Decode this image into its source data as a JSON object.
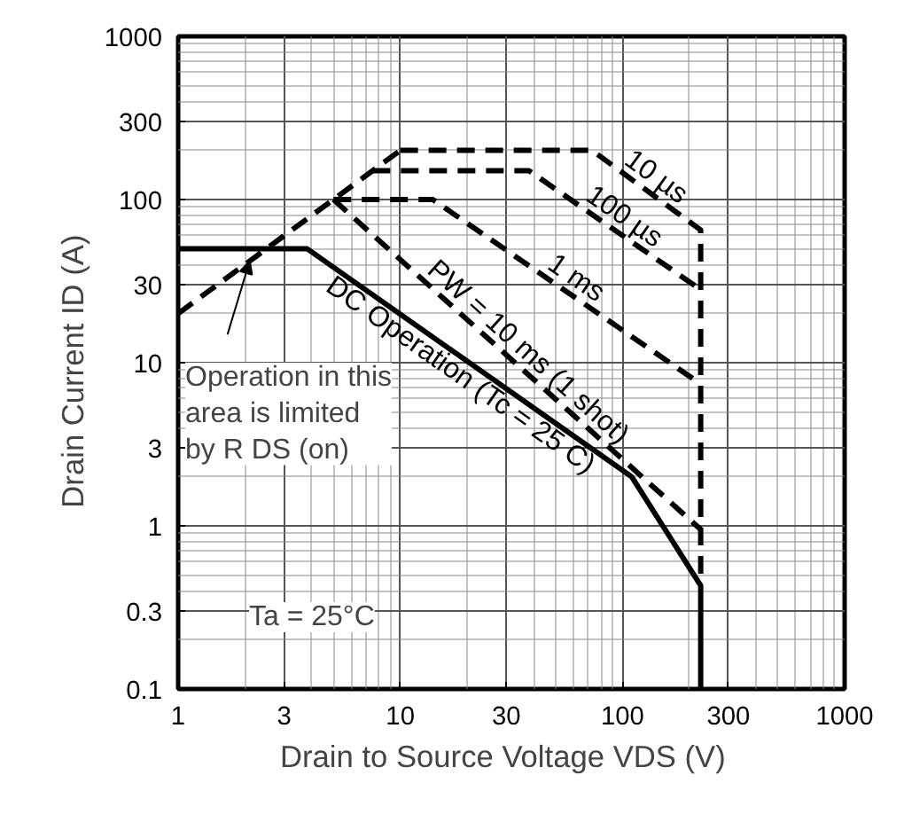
{
  "chart_data": {
    "type": "line",
    "xlabel": "Drain to Source Voltage  VDS  (V)",
    "ylabel": "Drain Current  ID  (A)",
    "log": "xy",
    "xlim": [
      1,
      1000
    ],
    "ylim": [
      0.1,
      1000
    ],
    "xticks": [
      1,
      3,
      10,
      30,
      100,
      300,
      1000
    ],
    "yticks": [
      0.1,
      0.3,
      1,
      3,
      10,
      30,
      100,
      300,
      1000
    ],
    "grid": true,
    "legend": false,
    "marker": "none",
    "series": [
      {
        "name": "10 µs",
        "color": "#000000",
        "line_style": "dashed",
        "x": [
          10,
          73,
          225,
          225
        ],
        "values": [
          200,
          200,
          65,
          0.45
        ]
      },
      {
        "name": "100 µs",
        "color": "#000000",
        "line_style": "dashed",
        "x": [
          7.5,
          38,
          225
        ],
        "values": [
          150,
          150,
          28
        ]
      },
      {
        "name": "1 ms",
        "color": "#000000",
        "line_style": "dashed",
        "x": [
          5,
          14,
          225
        ],
        "values": [
          100,
          100,
          7.4
        ]
      },
      {
        "name": "PW = 10 ms (1 shot)",
        "color": "#000000",
        "line_style": "dashed",
        "x": [
          5,
          225
        ],
        "values": [
          100,
          0.95
        ]
      },
      {
        "name": "DC Operation (Tc = 25 C)",
        "color": "#000000",
        "line_style": "solid",
        "x": [
          1,
          3.8,
          110,
          225,
          225
        ],
        "values": [
          50,
          50,
          2,
          0.43,
          0.1
        ]
      },
      {
        "color": "#000000",
        "line_style": "dashed",
        "x": [
          1,
          10
        ],
        "values": [
          20,
          200
        ]
      }
    ],
    "annotations": [
      {
        "text": "Operation in this\narea is limited\nby R DS (on)",
        "x": 2.1,
        "y": 42
      },
      "Ta = 25°C"
    ]
  }
}
